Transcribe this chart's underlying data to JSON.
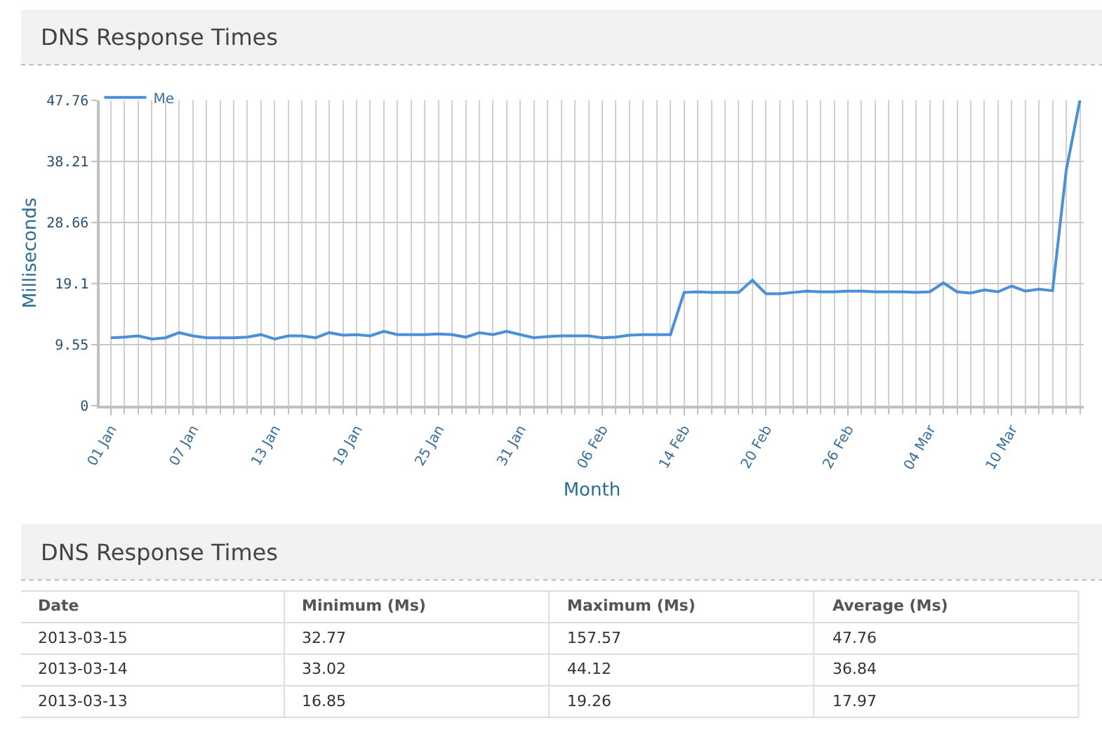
{
  "chart_data": [
    {
      "type": "line",
      "title": "DNS Response Times",
      "xlabel": "Month",
      "ylabel": "Milliseconds",
      "categories": [
        "01 Jan",
        null,
        null,
        null,
        null,
        null,
        "07 Jan",
        null,
        null,
        null,
        null,
        null,
        "13 Jan",
        null,
        null,
        null,
        null,
        null,
        "19 Jan",
        null,
        null,
        null,
        null,
        null,
        "25 Jan",
        null,
        null,
        null,
        null,
        null,
        "31 Jan",
        null,
        null,
        null,
        null,
        null,
        "06 Feb",
        null,
        null,
        null,
        null,
        null,
        "14 Feb",
        null,
        null,
        null,
        null,
        null,
        "20 Feb",
        null,
        null,
        null,
        null,
        null,
        "26 Feb",
        null,
        null,
        null,
        null,
        null,
        "04 Mar",
        null,
        null,
        null,
        null,
        null,
        "10 Mar",
        null,
        null,
        null,
        null,
        null
      ],
      "series": [
        {
          "name": "Me",
          "color": "#4a90d9",
          "values": [
            10.6,
            10.7,
            10.9,
            10.4,
            10.6,
            11.4,
            10.9,
            10.6,
            10.6,
            10.6,
            10.7,
            11.1,
            10.4,
            10.9,
            10.9,
            10.6,
            11.4,
            11.0,
            11.1,
            10.9,
            11.6,
            11.1,
            11.1,
            11.1,
            11.2,
            11.1,
            10.7,
            11.4,
            11.1,
            11.6,
            11.1,
            10.6,
            10.8,
            10.9,
            10.9,
            10.9,
            10.6,
            10.7,
            11.0,
            11.1,
            11.1,
            11.1,
            17.7,
            17.8,
            17.7,
            17.7,
            17.7,
            19.6,
            17.5,
            17.5,
            17.7,
            17.9,
            17.8,
            17.8,
            17.9,
            17.9,
            17.8,
            17.8,
            17.8,
            17.7,
            17.8,
            19.2,
            17.8,
            17.6,
            18.1,
            17.8,
            18.7,
            17.9,
            18.2,
            17.97,
            36.84,
            47.76
          ]
        }
      ],
      "ylim": [
        0,
        47.76
      ],
      "yticks": [
        0,
        9.55,
        19.1,
        28.66,
        38.21,
        47.76
      ],
      "grid": true,
      "legend": "top left",
      "marker": "none",
      "line_style": "solid"
    },
    {
      "type": "other",
      "title": "DNS Response Times",
      "annotations": [
        "Date",
        "Minimum (Ms)",
        "Maximum (Ms)",
        "Average (Ms)",
        "2013-03-15",
        "32.77",
        "157.57",
        "47.76",
        "2013-03-14",
        "33.02",
        "44.12",
        "36.84",
        "2013-03-13",
        "16.85",
        "19.26",
        "17.97"
      ]
    }
  ]
}
